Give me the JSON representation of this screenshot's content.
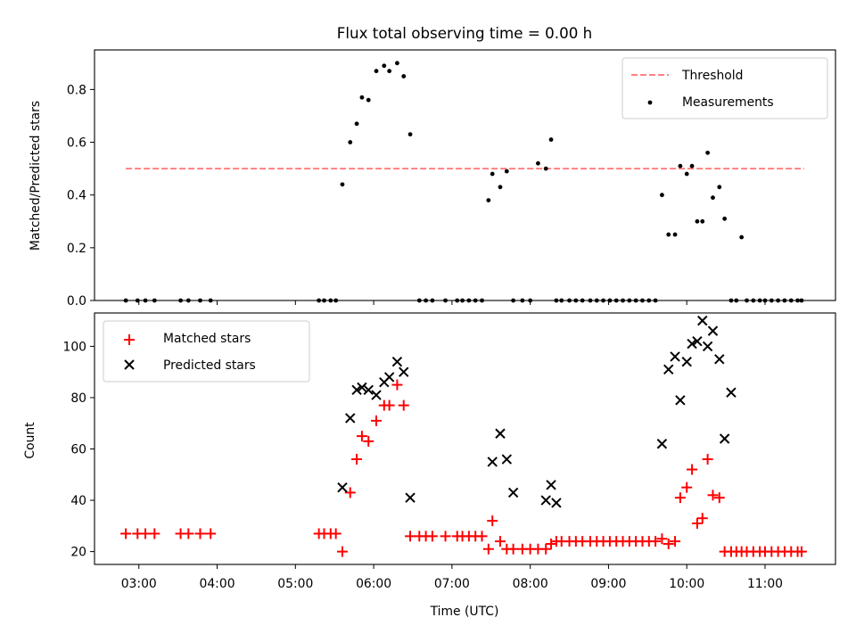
{
  "chart_data": [
    {
      "type": "scatter",
      "title": "Flux total observing time = 0.00 h",
      "xlabel": "",
      "ylabel": "Matched/Predicted stars",
      "ylim": [
        0,
        0.95
      ],
      "xlim": [
        "02:26",
        "11:54"
      ],
      "yticks": [
        "0.0",
        "0.2",
        "0.4",
        "0.6",
        "0.8"
      ],
      "legend_position": "top-right",
      "threshold": {
        "name": "Threshold",
        "value": 0.5,
        "x_start": "02:50",
        "x_end": "11:30",
        "color": "#ff8080",
        "style": "dashed"
      },
      "series": [
        {
          "name": "Measurements",
          "color": "#000000",
          "marker": "dot",
          "x": [
            "02:50",
            "02:59",
            "03:05",
            "03:12",
            "03:32",
            "03:38",
            "03:47",
            "03:55",
            "05:18",
            "05:22",
            "05:27",
            "05:31",
            "05:36",
            "05:42",
            "05:47",
            "05:51",
            "05:56",
            "06:02",
            "06:08",
            "06:12",
            "06:18",
            "06:23",
            "06:28",
            "06:35",
            "06:40",
            "06:45",
            "06:55",
            "07:04",
            "07:08",
            "07:13",
            "07:18",
            "07:23",
            "07:28",
            "07:31",
            "07:37",
            "07:42",
            "07:47",
            "07:54",
            "08:00",
            "08:06",
            "08:12",
            "08:16",
            "08:20",
            "08:24",
            "08:30",
            "08:35",
            "08:40",
            "08:46",
            "08:51",
            "08:56",
            "09:01",
            "09:06",
            "09:11",
            "09:16",
            "09:21",
            "09:26",
            "09:31",
            "09:36",
            "09:41",
            "09:46",
            "09:51",
            "09:55",
            "10:00",
            "10:04",
            "10:08",
            "10:12",
            "10:16",
            "10:20",
            "10:25",
            "10:29",
            "10:34",
            "10:38",
            "10:42",
            "10:46",
            "10:51",
            "10:56",
            "11:00",
            "11:05",
            "11:10",
            "11:15",
            "11:20",
            "11:25",
            "11:28"
          ],
          "y": [
            0,
            0,
            0,
            0,
            0,
            0,
            0,
            0,
            0,
            0,
            0,
            0,
            0.44,
            0.6,
            0.67,
            0.77,
            0.76,
            0.87,
            0.89,
            0.87,
            0.9,
            0.85,
            0.63,
            0,
            0,
            0,
            0,
            0,
            0,
            0,
            0,
            0,
            0.38,
            0.48,
            0.43,
            0.49,
            0,
            0,
            0,
            0.52,
            0.5,
            0.61,
            0,
            0,
            0,
            0,
            0,
            0,
            0,
            0,
            0,
            0,
            0,
            0,
            0,
            0,
            0,
            0,
            0.4,
            0.25,
            0.25,
            0.51,
            0.48,
            0.51,
            0.3,
            0.3,
            0.56,
            0.39,
            0.43,
            0.31,
            0,
            0,
            0.24,
            0,
            0,
            0,
            0,
            0,
            0,
            0,
            0,
            0,
            0
          ]
        }
      ]
    },
    {
      "type": "scatter",
      "title": "",
      "xlabel": "Time (UTC)",
      "ylabel": "Count",
      "ylim": [
        15,
        113
      ],
      "xlim": [
        "02:26",
        "11:54"
      ],
      "yticks": [
        "20",
        "40",
        "60",
        "80",
        "100"
      ],
      "xticks": [
        "03:00",
        "04:00",
        "05:00",
        "06:00",
        "07:00",
        "08:00",
        "09:00",
        "10:00",
        "11:00"
      ],
      "legend_position": "top-left",
      "series": [
        {
          "name": "Matched stars",
          "color": "#ff0000",
          "marker": "plus",
          "x": [
            "02:50",
            "02:59",
            "03:05",
            "03:12",
            "03:32",
            "03:38",
            "03:47",
            "03:55",
            "05:18",
            "05:22",
            "05:27",
            "05:31",
            "05:36",
            "05:42",
            "05:47",
            "05:51",
            "05:56",
            "06:02",
            "06:08",
            "06:12",
            "06:18",
            "06:23",
            "06:28",
            "06:35",
            "06:40",
            "06:45",
            "06:55",
            "07:04",
            "07:08",
            "07:13",
            "07:18",
            "07:23",
            "07:28",
            "07:31",
            "07:37",
            "07:42",
            "07:47",
            "07:54",
            "08:00",
            "08:06",
            "08:12",
            "08:16",
            "08:20",
            "08:24",
            "08:30",
            "08:35",
            "08:40",
            "08:46",
            "08:51",
            "08:56",
            "09:01",
            "09:06",
            "09:11",
            "09:16",
            "09:21",
            "09:26",
            "09:31",
            "09:36",
            "09:41",
            "09:46",
            "09:51",
            "09:55",
            "10:00",
            "10:04",
            "10:08",
            "10:12",
            "10:16",
            "10:20",
            "10:25",
            "10:29",
            "10:34",
            "10:38",
            "10:42",
            "10:46",
            "10:51",
            "10:56",
            "11:00",
            "11:05",
            "11:10",
            "11:15",
            "11:20",
            "11:25",
            "11:28"
          ],
          "y": [
            27,
            27,
            27,
            27,
            27,
            27,
            27,
            27,
            27,
            27,
            27,
            27,
            20,
            43,
            56,
            65,
            63,
            71,
            77,
            77,
            85,
            77,
            26,
            26,
            26,
            26,
            26,
            26,
            26,
            26,
            26,
            26,
            21,
            32,
            24,
            21,
            21,
            21,
            21,
            21,
            21,
            23,
            24,
            24,
            24,
            24,
            24,
            24,
            24,
            24,
            24,
            24,
            24,
            24,
            24,
            24,
            24,
            24,
            25,
            23,
            24,
            41,
            45,
            52,
            31,
            33,
            56,
            42,
            41,
            20,
            20,
            20,
            20,
            20,
            20,
            20,
            20,
            20,
            20,
            20,
            20,
            20,
            20
          ]
        },
        {
          "name": "Predicted stars",
          "color": "#000000",
          "marker": "x",
          "x": [
            "05:36",
            "05:42",
            "05:47",
            "05:51",
            "05:56",
            "06:02",
            "06:08",
            "06:12",
            "06:18",
            "06:23",
            "06:28",
            "07:31",
            "07:37",
            "07:42",
            "07:47",
            "08:12",
            "08:16",
            "08:20",
            "09:41",
            "09:46",
            "09:51",
            "09:55",
            "10:00",
            "10:04",
            "10:08",
            "10:12",
            "10:16",
            "10:20",
            "10:25",
            "10:29",
            "10:34",
            "10:38",
            "10:42",
            "10:46",
            "10:51",
            "10:56",
            "11:00",
            "11:05",
            "11:10",
            "11:15",
            "11:20",
            "11:25",
            "11:28"
          ],
          "y": [
            45,
            72,
            83,
            84,
            83,
            81,
            86,
            88,
            94,
            90,
            41,
            55,
            66,
            56,
            43,
            40,
            46,
            39,
            62,
            91,
            96,
            79,
            94,
            101,
            102,
            110,
            100,
            106,
            95,
            64,
            82,
            null,
            null,
            null,
            null,
            null,
            null,
            null,
            null,
            null,
            null,
            null,
            null
          ]
        }
      ]
    }
  ]
}
